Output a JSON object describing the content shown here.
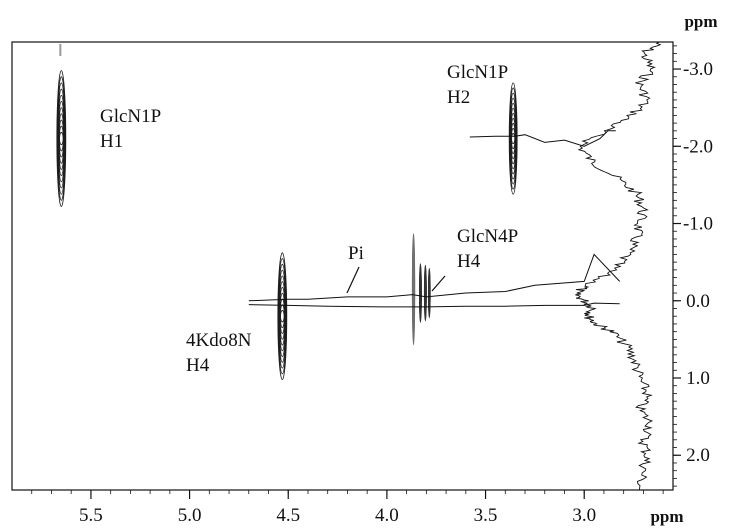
{
  "chart_data": {
    "type": "heatmap",
    "x_unit": "ppm",
    "y_unit": "ppm",
    "xlim": [
      5.9,
      2.55
    ],
    "ylim": [
      -3.35,
      2.45
    ],
    "x_ticks": [
      {
        "value": 5.5,
        "label": "5.5"
      },
      {
        "value": 5.0,
        "label": "5.0"
      },
      {
        "value": 4.5,
        "label": "4.5"
      },
      {
        "value": 4.0,
        "label": "4.0"
      },
      {
        "value": 3.5,
        "label": "3.5"
      },
      {
        "value": 3.0,
        "label": "3.0"
      }
    ],
    "y_ticks": [
      {
        "value": -3.0,
        "label": "-3.0"
      },
      {
        "value": -2.0,
        "label": "-2.0"
      },
      {
        "value": -1.0,
        "label": "-1.0"
      },
      {
        "value": 0.0,
        "label": "0.0"
      },
      {
        "value": 1.0,
        "label": "1.0"
      },
      {
        "value": 2.0,
        "label": "2.0"
      }
    ],
    "annotations": [
      {
        "id": "glcn1p-h1",
        "lines": [
          "GlcN1P",
          "H1"
        ]
      },
      {
        "id": "glcn1p-h2",
        "lines": [
          "GlcN1P",
          "H2"
        ]
      },
      {
        "id": "pi",
        "lines": [
          "Pi"
        ]
      },
      {
        "id": "glcn4p-h4",
        "lines": [
          "GlcN4P",
          "H4"
        ]
      },
      {
        "id": "kdo-h4",
        "lines": [
          "4Kdo8N",
          "H4"
        ]
      }
    ],
    "cross_peaks": [
      {
        "label": "GlcN1P H1",
        "x": 5.65,
        "y": -2.1,
        "x_width": 0.045,
        "y_half_height": 0.88,
        "color": "#1e1e1e"
      },
      {
        "label": "GlcN1P H2",
        "x": 3.36,
        "y": -2.1,
        "x_width": 0.04,
        "y_half_height": 0.72,
        "color": "#1e1e1e"
      },
      {
        "label": "4Kdo8N H4",
        "x": 4.53,
        "y": 0.2,
        "x_width": 0.045,
        "y_half_height": 0.82,
        "color": "#1e1e1e"
      },
      {
        "label": "GlcN4P H4 (a)",
        "x": 3.865,
        "y": -0.15,
        "x_width": 0.012,
        "y_half_height": 0.72,
        "color": "#6f6f6f"
      },
      {
        "label": "GlcN4P H4 (b)",
        "x": 3.83,
        "y": -0.1,
        "x_width": 0.01,
        "y_half_height": 0.38,
        "color": "#333333"
      },
      {
        "label": "GlcN4P H4 (c)",
        "x": 3.805,
        "y": -0.1,
        "x_width": 0.01,
        "y_half_height": 0.36,
        "color": "#333333"
      },
      {
        "label": "GlcN4P H4 (d)",
        "x": 3.785,
        "y": -0.1,
        "x_width": 0.009,
        "y_half_height": 0.32,
        "color": "#333333"
      }
    ],
    "projection_f2": {
      "baseline_y": 0.0,
      "segments": [
        {
          "x": [
            4.7,
            4.5,
            4.4,
            4.2,
            4.0,
            3.87,
            3.8,
            3.6,
            3.4,
            3.25,
            3.0,
            2.95,
            2.82
          ],
          "y": [
            0.0,
            -0.02,
            -0.02,
            -0.05,
            -0.05,
            -0.08,
            -0.05,
            -0.1,
            -0.12,
            -0.2,
            -0.25,
            -0.6,
            -0.25
          ]
        },
        {
          "x": [
            4.7,
            4.5,
            4.3,
            4.0,
            3.8,
            3.6,
            3.4,
            3.2,
            3.0,
            2.95,
            2.82
          ],
          "y": [
            0.05,
            0.06,
            0.07,
            0.08,
            0.08,
            0.07,
            0.07,
            0.06,
            0.06,
            0.03,
            0.04
          ]
        },
        {
          "x": [
            3.58,
            3.45,
            3.35,
            3.3,
            3.2,
            3.1,
            3.0,
            2.92,
            2.88,
            2.84
          ],
          "y": [
            -2.12,
            -2.13,
            -2.13,
            -2.15,
            -2.05,
            -2.08,
            -2.0,
            -2.1,
            -2.2,
            -2.2
          ]
        }
      ]
    },
    "projection_f1": {
      "y": [
        -3.35,
        -3.2,
        -3.0,
        -2.8,
        -2.6,
        -2.4,
        -2.2,
        -2.0,
        -1.8,
        -1.6,
        -1.4,
        -1.2,
        -1.0,
        -0.8,
        -0.6,
        -0.4,
        -0.2,
        -0.1,
        0.0,
        0.1,
        0.2,
        0.3,
        0.4,
        0.6,
        0.8,
        1.0,
        1.2,
        1.4,
        1.6,
        1.8,
        2.0,
        2.2,
        2.45
      ],
      "x": [
        2.62,
        2.7,
        2.66,
        2.72,
        2.68,
        2.76,
        2.9,
        3.02,
        2.96,
        2.84,
        2.74,
        2.7,
        2.72,
        2.74,
        2.78,
        2.86,
        2.98,
        3.05,
        3.0,
        2.95,
        2.98,
        2.94,
        2.86,
        2.78,
        2.74,
        2.72,
        2.68,
        2.72,
        2.66,
        2.7,
        2.68,
        2.7,
        2.72
      ],
      "jitter": 0.03
    }
  }
}
